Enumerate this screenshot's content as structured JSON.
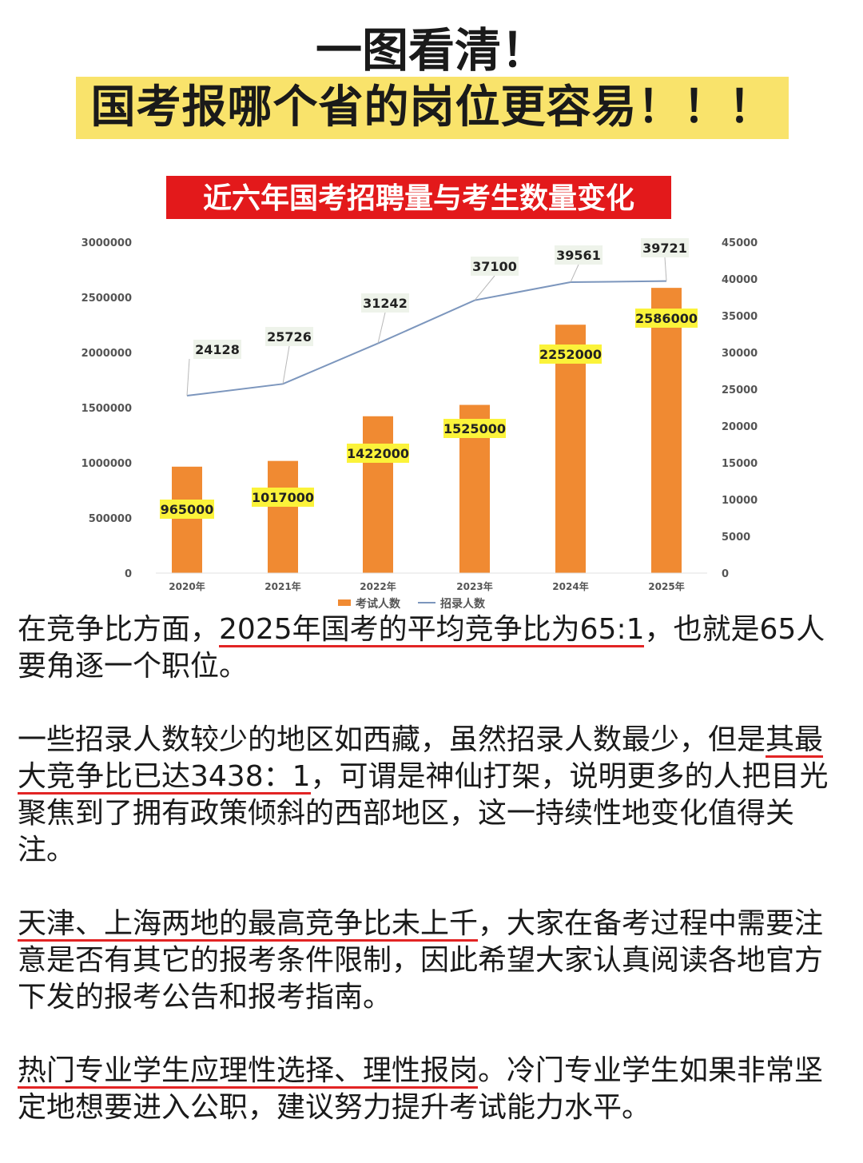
{
  "header": {
    "title_line1": "一图看清！",
    "title_line2": "国考报哪个省的岗位更容易！！！"
  },
  "chart_data": {
    "type": "bar",
    "title": "近六年国考招聘量与考生数量变化",
    "categories": [
      "2020年",
      "2021年",
      "2022年",
      "2023年",
      "2024年",
      "2025年"
    ],
    "series": [
      {
        "name": "考试人数",
        "type": "bar",
        "axis": "left",
        "color": "#f08a32",
        "values": [
          965000,
          1017000,
          1422000,
          1525000,
          2252000,
          2586000
        ]
      },
      {
        "name": "招录人数",
        "type": "line",
        "axis": "right",
        "color": "#7c96bd",
        "values": [
          24128,
          25726,
          31242,
          37100,
          39561,
          39721
        ]
      }
    ],
    "left_axis": {
      "min": 0,
      "max": 3000000,
      "ticks": [
        "0",
        "500000",
        "1000000",
        "1500000",
        "2000000",
        "2500000",
        "3000000"
      ]
    },
    "right_axis": {
      "min": 0,
      "max": 45000,
      "ticks": [
        "0",
        "5000",
        "10000",
        "15000",
        "20000",
        "25000",
        "30000",
        "35000",
        "40000",
        "45000"
      ]
    },
    "legend": "bottom",
    "colors": {
      "title_bg": "#e3191b",
      "label_bg": "#fbf33a",
      "line_label_bg": "#eef3ea"
    }
  },
  "body": {
    "p1": {
      "a": "在竞争比方面，",
      "ul": "2025年国考的平均竞争比为65:1",
      "b": "，也就是65人要角逐一个职位。"
    },
    "p2": {
      "a": "一些招录人数较少的地区如西藏，虽然招录人数最少，但是",
      "ul": "其最大竞争比已达3438：1",
      "b": "，可谓是神仙打架，说明更多的人把目光聚焦到了拥有政策倾斜的西部地区，这一持续性地变化值得关注。"
    },
    "p3": {
      "ul": "天津、上海两地的最高竞争比未上千",
      "b": "，大家在备考过程中需要注意是否有其它的报考条件限制，因此希望大家认真阅读各地官方下发的报考公告和报考指南。"
    },
    "p4": {
      "ul": "热门专业学生应理性选择、理性报岗",
      "b": "。冷门专业学生如果非常坚定地想要进入公职，建议努力提升考试能力水平。"
    }
  }
}
